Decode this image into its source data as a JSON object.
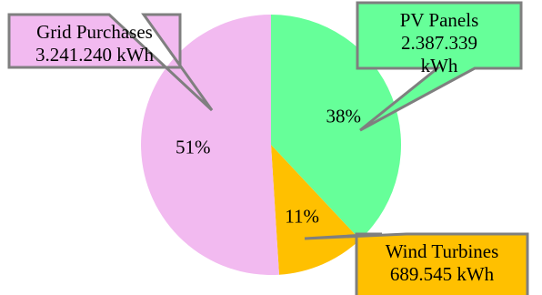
{
  "chart_data": {
    "type": "pie",
    "slices": [
      {
        "label": "PV Panels",
        "value_lines": [
          "2.387.339",
          "kWh"
        ],
        "value_kwh": 2387339,
        "percent_label": "38%",
        "percent": 38,
        "color": "#66ff99"
      },
      {
        "label": "Wind Turbines",
        "value_lines": [
          "689.545 kWh"
        ],
        "value_kwh": 689545,
        "percent_label": "11%",
        "percent": 11,
        "color": "#ffc000"
      },
      {
        "label": "Grid Purchases",
        "value_lines": [
          "3.241.240 kWh"
        ],
        "value_kwh": 3241240,
        "percent_label": "51%",
        "percent": 51,
        "color": "#f2baf0"
      }
    ],
    "start_angle_deg": 0,
    "direction": "clockwise",
    "legend": "none",
    "callout_border_color": "#7f7f7f"
  }
}
